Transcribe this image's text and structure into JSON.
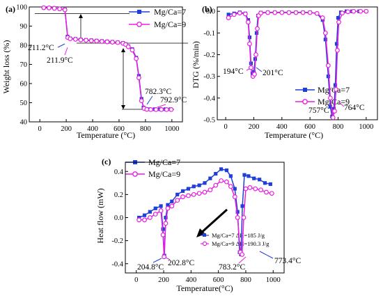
{
  "colors": {
    "mg7": "#1f3fd8",
    "mg9": "#e91ee0"
  },
  "chart_data": [
    {
      "panel": "(a)",
      "type": "line",
      "xlabel": "Temperature (°C)",
      "ylabel": "Weight loss (%)",
      "xlim": [
        -80,
        1080
      ],
      "ylim": [
        40,
        100
      ],
      "xticks": [
        0,
        200,
        400,
        600,
        800,
        1000
      ],
      "yticks": [
        40,
        50,
        60,
        70,
        80,
        90,
        100
      ],
      "legend": "top-right",
      "series": [
        {
          "name": "Mg/Ca=7",
          "marker": "square",
          "x": [
            30,
            70,
            110,
            150,
            190,
            210,
            230,
            270,
            310,
            350,
            390,
            430,
            470,
            510,
            550,
            590,
            630,
            650,
            670,
            700,
            730,
            750,
            770,
            785,
            800,
            830,
            870,
            910,
            950,
            990
          ],
          "y": [
            99.6,
            99.5,
            99.3,
            99.0,
            98.7,
            84.5,
            83.6,
            83.3,
            83.0,
            82.8,
            82.6,
            82.4,
            82.2,
            82.0,
            81.8,
            81.5,
            81.2,
            80.6,
            79.5,
            78.0,
            73.5,
            64,
            52,
            47.5,
            46.8,
            46.6,
            46.6,
            46.6,
            46.6,
            46.6
          ]
        },
        {
          "name": "Mg/Ca=9",
          "marker": "circle",
          "x": [
            30,
            70,
            110,
            150,
            190,
            212,
            230,
            270,
            310,
            350,
            390,
            430,
            470,
            510,
            550,
            590,
            630,
            650,
            670,
            700,
            730,
            750,
            770,
            790,
            810,
            840,
            880,
            920,
            960,
            995
          ],
          "y": [
            99.6,
            99.5,
            99.3,
            99.0,
            98.5,
            84.0,
            83.4,
            83.1,
            82.8,
            82.6,
            82.4,
            82.2,
            82.0,
            81.8,
            81.6,
            81.4,
            81.0,
            80.4,
            79.2,
            77.5,
            73.0,
            63,
            51,
            47,
            46.5,
            46.4,
            46.4,
            46.4,
            46.4,
            46.4
          ]
        }
      ],
      "annotations": [
        "211.2°C",
        "211.9°C",
        "782.3°C",
        "792.9°C"
      ]
    },
    {
      "panel": "(b)",
      "type": "line",
      "xlabel": "Temperature (°C)",
      "ylabel": "DTG (%/min)",
      "xlim": [
        -60,
        1080
      ],
      "ylim": [
        -0.5,
        0.02
      ],
      "xticks": [
        0,
        200,
        400,
        600,
        800,
        1000
      ],
      "yticks": [
        0.0,
        -0.1,
        -0.2,
        -0.3,
        -0.4,
        -0.5
      ],
      "ytick_labels": [
        "0.0",
        "-0.1",
        "-0.2",
        "-0.3",
        "-0.4",
        "-0.5"
      ],
      "legend": "bottom-right",
      "series": [
        {
          "name": "Mg/Ca=7",
          "marker": "square",
          "x": [
            20,
            60,
            100,
            140,
            160,
            170,
            180,
            190,
            200,
            210,
            220,
            230,
            250,
            300,
            350,
            400,
            450,
            500,
            550,
            600,
            650,
            690,
            710,
            730,
            745,
            757,
            770,
            780,
            790,
            800,
            820,
            860,
            900,
            950,
            1000
          ],
          "y": [
            -0.015,
            -0.01,
            -0.005,
            -0.01,
            -0.04,
            -0.12,
            -0.24,
            -0.285,
            -0.28,
            -0.22,
            -0.1,
            -0.02,
            -0.006,
            -0.005,
            -0.005,
            -0.005,
            -0.005,
            -0.005,
            -0.005,
            -0.005,
            -0.01,
            -0.04,
            -0.13,
            -0.3,
            -0.44,
            -0.485,
            -0.45,
            -0.34,
            -0.15,
            -0.03,
            -0.005,
            0.0,
            0.0,
            0.0,
            0.0
          ]
        },
        {
          "name": "Mg/Ca=9",
          "marker": "circle",
          "x": [
            20,
            60,
            100,
            140,
            160,
            170,
            180,
            194,
            205,
            215,
            225,
            235,
            250,
            300,
            350,
            400,
            450,
            500,
            550,
            600,
            650,
            690,
            710,
            730,
            745,
            764,
            775,
            785,
            795,
            805,
            830,
            870,
            910,
            960,
            1000
          ],
          "y": [
            -0.03,
            -0.015,
            -0.008,
            -0.012,
            -0.05,
            -0.15,
            -0.26,
            -0.3,
            -0.29,
            -0.2,
            -0.08,
            -0.02,
            -0.008,
            -0.006,
            -0.006,
            -0.006,
            -0.006,
            -0.006,
            -0.006,
            -0.006,
            -0.01,
            -0.03,
            -0.1,
            -0.25,
            -0.4,
            -0.49,
            -0.46,
            -0.36,
            -0.18,
            -0.05,
            -0.008,
            -0.002,
            0.0,
            0.0,
            0.0
          ]
        }
      ],
      "annotations": [
        "194°C",
        "201°C",
        "757°C",
        "764°C"
      ]
    },
    {
      "panel": "(c)",
      "type": "line",
      "xlabel": "Temperature(°C)",
      "ylabel": "Heat flow (mW)",
      "xlim": [
        -80,
        1080
      ],
      "ylim": [
        -0.48,
        0.48
      ],
      "xticks": [
        0,
        200,
        400,
        600,
        800,
        1000
      ],
      "yticks": [
        0.4,
        0.2,
        0.0,
        -0.2,
        -0.4
      ],
      "ytick_labels": [
        "0.4",
        "0.2",
        "0.0",
        "-0.2",
        "-0.4"
      ],
      "legend": "top-left",
      "series": [
        {
          "name": "Mg/Ca=7",
          "marker": "square",
          "x": [
            20,
            60,
            100,
            140,
            180,
            195,
            205,
            215,
            230,
            260,
            300,
            340,
            380,
            420,
            460,
            500,
            540,
            580,
            620,
            660,
            690,
            720,
            740,
            755,
            765,
            775,
            790,
            820,
            860,
            900,
            940,
            980
          ],
          "y": [
            0.0,
            0.02,
            0.05,
            0.08,
            0.1,
            -0.1,
            -0.33,
            0.0,
            0.11,
            0.14,
            0.2,
            0.23,
            0.25,
            0.27,
            0.28,
            0.3,
            0.34,
            0.38,
            0.42,
            0.41,
            0.36,
            0.25,
            0.05,
            -0.3,
            -0.32,
            0.1,
            0.37,
            0.36,
            0.34,
            0.33,
            0.3,
            0.29
          ]
        },
        {
          "name": "Mg/Ca=9",
          "marker": "circle",
          "x": [
            20,
            60,
            100,
            140,
            180,
            195,
            203,
            215,
            230,
            260,
            300,
            340,
            380,
            420,
            460,
            500,
            540,
            580,
            620,
            660,
            690,
            720,
            740,
            760,
            773,
            785,
            800,
            830,
            870,
            910,
            950,
            990
          ],
          "y": [
            -0.02,
            -0.02,
            0.0,
            0.03,
            0.06,
            -0.15,
            -0.34,
            -0.05,
            0.08,
            0.1,
            0.15,
            0.18,
            0.19,
            0.2,
            0.21,
            0.22,
            0.24,
            0.28,
            0.32,
            0.31,
            0.27,
            0.18,
            0.0,
            -0.3,
            -0.32,
            0.0,
            0.25,
            0.26,
            0.25,
            0.24,
            0.22,
            0.21
          ]
        }
      ],
      "annotations": [
        "204.8°C",
        "202.8°C",
        "783.2°C",
        "773.4°C"
      ],
      "enthalpy_labels": [
        "Mg/Ca=7 ΔH=185 J/g",
        "Mg/Ca=9 ΔH=190.3 J/g"
      ]
    }
  ]
}
